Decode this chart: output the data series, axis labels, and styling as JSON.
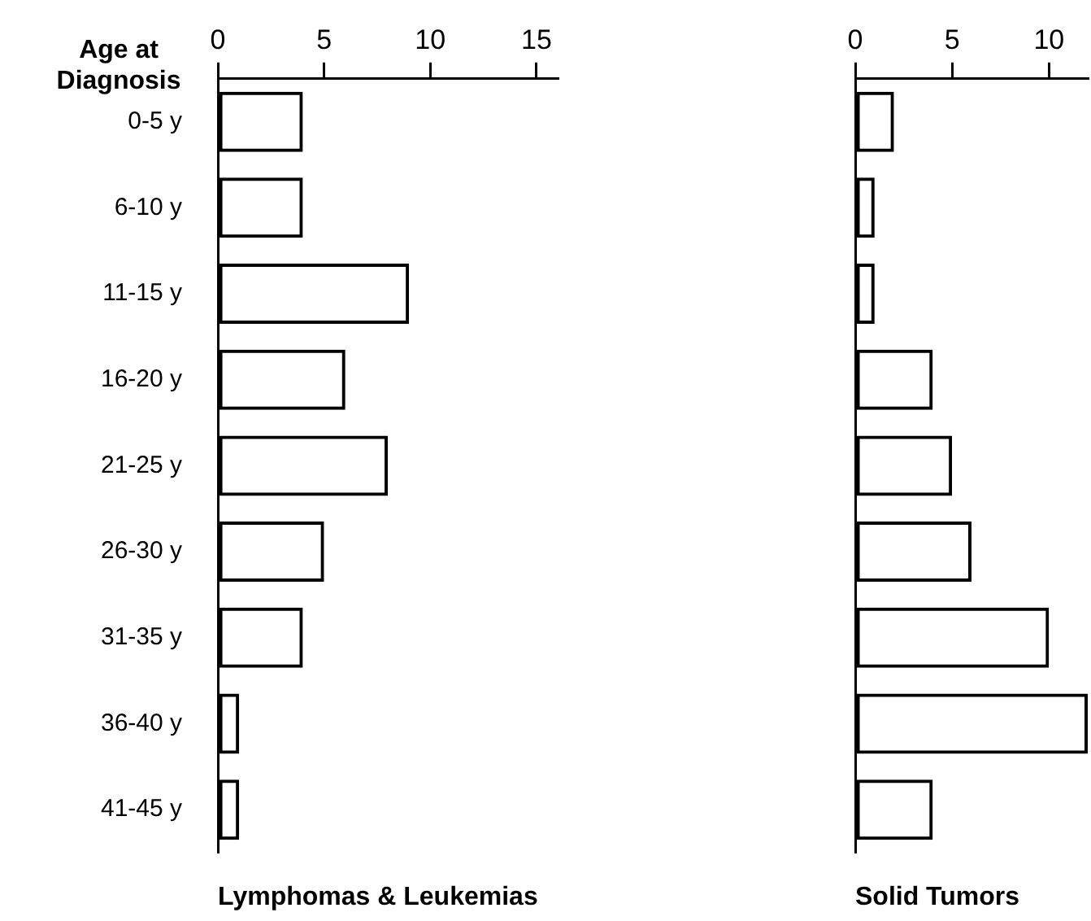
{
  "chart_data": [
    {
      "type": "bar",
      "orientation": "horizontal",
      "title": "Lymphomas & Leukemias",
      "ylabel": "Age at Diagnosis",
      "categories": [
        "0-5 y",
        "6-10 y",
        "11-15 y",
        "16-20 y",
        "21-25 y",
        "26-30 y",
        "31-35 y",
        "36-40 y",
        "41-45 y"
      ],
      "values": [
        4,
        4,
        9,
        6,
        8,
        5,
        4,
        1,
        1
      ],
      "color": "#000000",
      "xlim": [
        0,
        16
      ],
      "xticks": [
        0,
        5,
        10,
        15
      ],
      "grid": false
    },
    {
      "type": "bar",
      "orientation": "horizontal",
      "title": "Solid Tumors",
      "tick_labels": "x",
      "categories": [
        null,
        null,
        null,
        null,
        null,
        null,
        null,
        null,
        null
      ],
      "values": [
        2,
        1,
        1,
        4,
        5,
        6,
        10,
        12,
        4
      ],
      "color": "#000000",
      "xlim": [
        0,
        12
      ],
      "xticks": [
        0,
        5,
        10
      ],
      "grid": false
    }
  ]
}
